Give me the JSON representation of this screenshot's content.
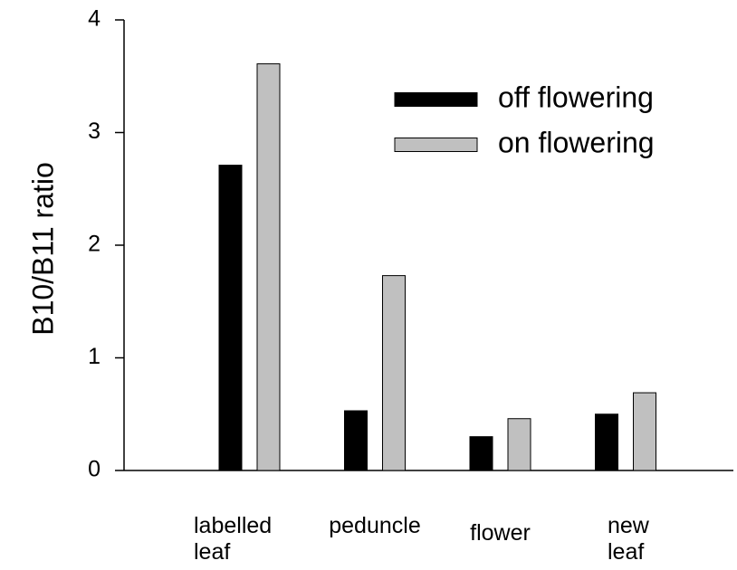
{
  "chart_data": {
    "type": "bar",
    "y_label": "B10/B11 ratio",
    "categories": [
      "labelled leaf",
      "peduncle",
      "flower",
      "new leaf"
    ],
    "series": [
      {
        "name": "off flowering",
        "color": "#000000",
        "values": [
          2.71,
          0.53,
          0.3,
          0.5
        ]
      },
      {
        "name": "on flowering",
        "color": "#c0c0c0",
        "values": [
          3.61,
          1.73,
          0.46,
          0.69
        ]
      }
    ],
    "ylim": [
      0,
      4
    ],
    "yticks": [
      0,
      1,
      2,
      3,
      4
    ],
    "grid": false,
    "legend": "upper right"
  }
}
